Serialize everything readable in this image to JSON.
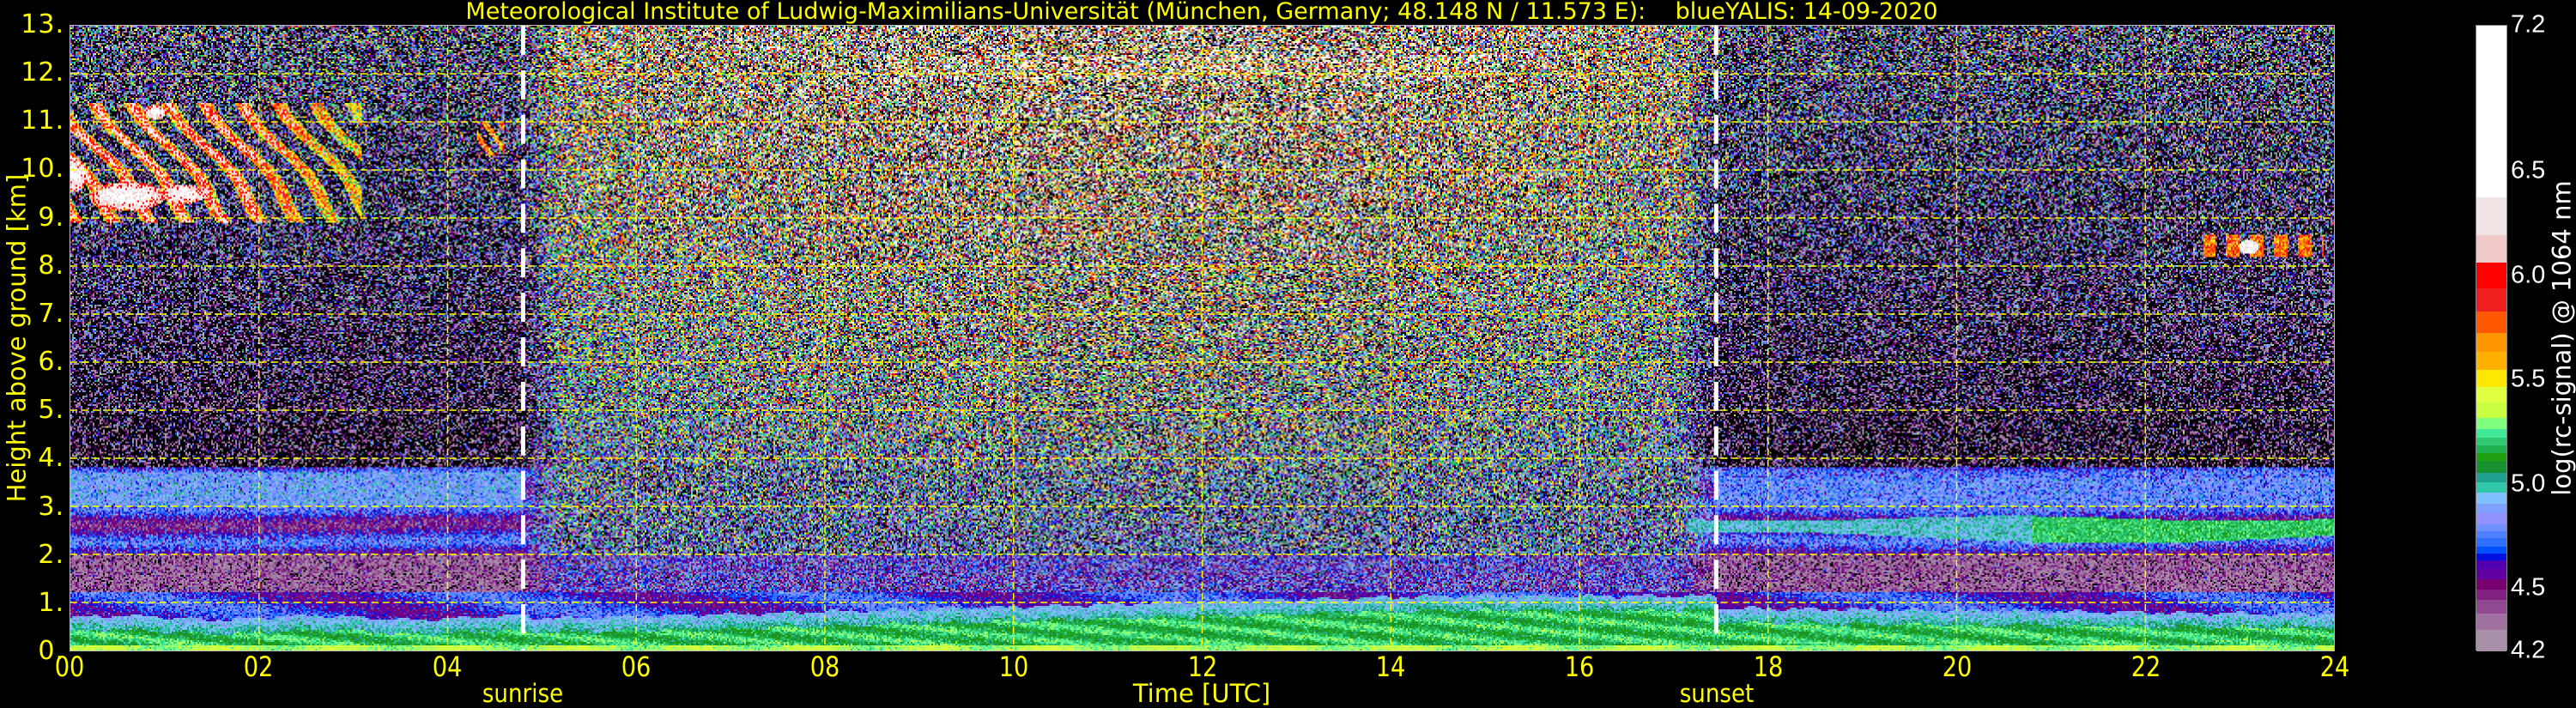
{
  "chart_data": {
    "type": "heatmap",
    "title": "Meteorological Institute of Ludwig-Maximilians-Universität (München, Germany; 48.148 N / 11.573 E):    blueYALIS: 14-09-2020",
    "xlabel": "Time [UTC]",
    "ylabel": "Height above ground [km]",
    "xlim": [
      0,
      24
    ],
    "ylim": [
      0,
      13
    ],
    "grid": true,
    "grid_color": "#ffff00",
    "xticks": [
      {
        "value": 0,
        "label": "00"
      },
      {
        "value": 2,
        "label": "02"
      },
      {
        "value": 4,
        "label": "04"
      },
      {
        "value": 6,
        "label": "06"
      },
      {
        "value": 8,
        "label": "08"
      },
      {
        "value": 10,
        "label": "10"
      },
      {
        "value": 12,
        "label": "12"
      },
      {
        "value": 14,
        "label": "14"
      },
      {
        "value": 16,
        "label": "16"
      },
      {
        "value": 18,
        "label": "18"
      },
      {
        "value": 20,
        "label": "20"
      },
      {
        "value": 22,
        "label": "22"
      },
      {
        "value": 24,
        "label": "24"
      }
    ],
    "yticks": [
      {
        "value": 0,
        "label": "0."
      },
      {
        "value": 1,
        "label": "1."
      },
      {
        "value": 2,
        "label": "2."
      },
      {
        "value": 3,
        "label": "3."
      },
      {
        "value": 4,
        "label": "4."
      },
      {
        "value": 5,
        "label": "5."
      },
      {
        "value": 6,
        "label": "6."
      },
      {
        "value": 7,
        "label": "7."
      },
      {
        "value": 8,
        "label": "8."
      },
      {
        "value": 9,
        "label": "9."
      },
      {
        "value": 10,
        "label": "10."
      },
      {
        "value": 11,
        "label": "11."
      },
      {
        "value": 12,
        "label": "12."
      },
      {
        "value": 13,
        "label": "13."
      }
    ],
    "annotations": [
      {
        "label": "sunrise",
        "x": 4.8
      },
      {
        "label": "sunset",
        "x": 17.45
      }
    ],
    "colorbar": {
      "label": "log(rc-signal) @ 1064 nm",
      "range": [
        4.2,
        7.2
      ],
      "ticks": [
        {
          "value": 4.2,
          "label": "4.2"
        },
        {
          "value": 4.5,
          "label": "4.5"
        },
        {
          "value": 5.0,
          "label": "5.0"
        },
        {
          "value": 5.5,
          "label": "5.5"
        },
        {
          "value": 6.0,
          "label": "6.0"
        },
        {
          "value": 6.5,
          "label": "6.5"
        },
        {
          "value": 7.2,
          "label": "7.2"
        }
      ],
      "bounds": [
        4.2,
        4.304,
        4.384,
        4.449,
        4.498,
        4.548,
        4.596,
        4.639,
        4.671,
        4.704,
        4.747,
        4.779,
        4.812,
        4.866,
        4.909,
        4.963,
        5.011,
        5.06,
        5.114,
        5.153,
        5.19,
        5.227,
        5.266,
        5.32,
        5.395,
        5.471,
        5.551,
        5.637,
        5.73,
        5.832,
        5.942,
        6.065,
        6.199,
        6.379,
        7.2
      ],
      "colors": [
        "#a890a8",
        "#a070a0",
        "#904890",
        "#802080",
        "#780070",
        "#6000a0",
        "#5000b0",
        "#0010e0",
        "#0050ff",
        "#3070ff",
        "#5080ff",
        "#7090ff",
        "#9090ff",
        "#80a0ff",
        "#80c0ff",
        "#30c8a8",
        "#20a090",
        "#189030",
        "#20a010",
        "#20b050",
        "#30c870",
        "#40e898",
        "#80ff80",
        "#c8ff40",
        "#e0ff40",
        "#ffe800",
        "#ffb000",
        "#ff9800",
        "#ff5800",
        "#f02020",
        "#ff0000",
        "#f0c8c8",
        "#f0e4e4",
        "#ffffff"
      ],
      "under_color": "#000000"
    }
  }
}
